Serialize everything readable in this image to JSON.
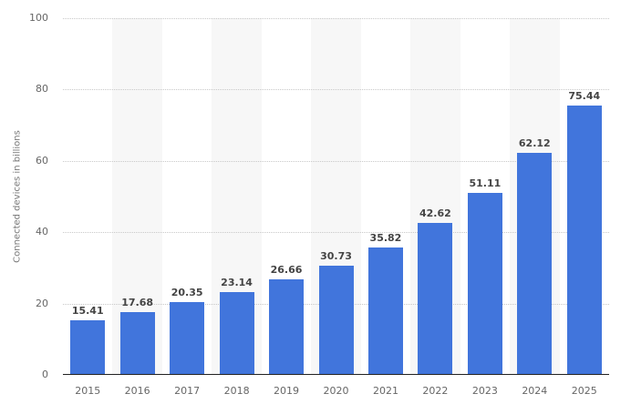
{
  "chart_data": {
    "type": "bar",
    "title": "",
    "xlabel": "",
    "ylabel": "Connected devices in billions",
    "ylim": [
      0,
      100
    ],
    "yticks": [
      0,
      20,
      40,
      60,
      80,
      100
    ],
    "grid": true,
    "categories": [
      "2015",
      "2016",
      "2017",
      "2018",
      "2019",
      "2020",
      "2021",
      "2022",
      "2023",
      "2024",
      "2025"
    ],
    "values": [
      15.41,
      17.68,
      20.35,
      23.14,
      26.66,
      30.73,
      35.82,
      42.62,
      51.11,
      62.12,
      75.44
    ],
    "value_labels": [
      "15.41",
      "17.68",
      "20.35",
      "23.14",
      "26.66",
      "30.73",
      "35.82",
      "42.62",
      "51.11",
      "62.12",
      "75.44"
    ],
    "bar_color": "#4175dc"
  }
}
